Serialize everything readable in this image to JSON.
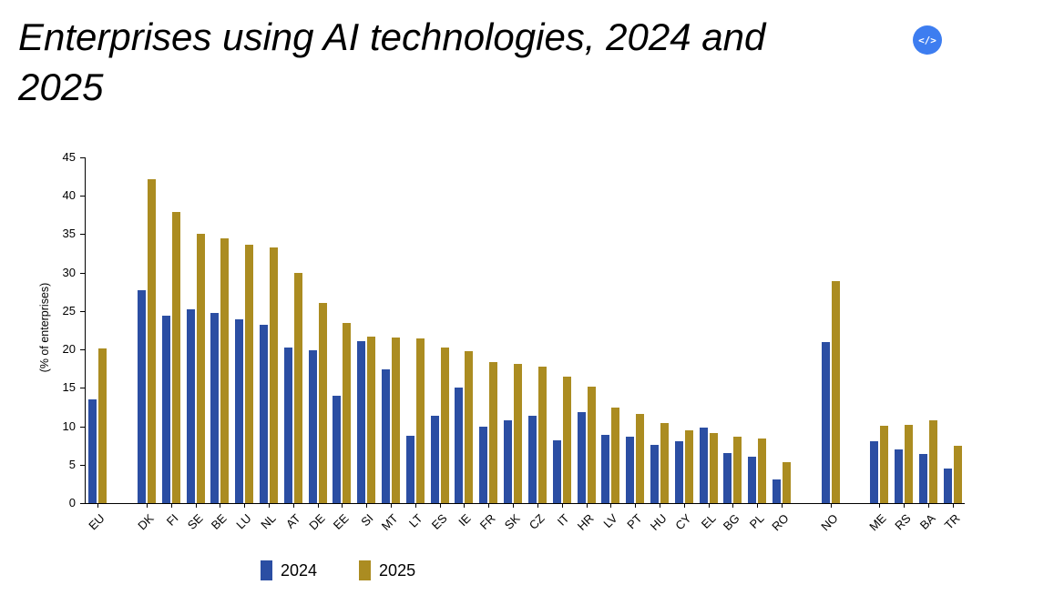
{
  "page": {
    "title": "Enterprises using AI technologies, 2024 and 2025",
    "embed_icon": "</>",
    "embed_button_color": "#3D7DF0",
    "background": "#FFFFFF"
  },
  "chart_data": {
    "type": "bar",
    "title": "Enterprises using AI technologies, 2024 and 2025",
    "ylabel": "(% of enterprises)",
    "xlabel": "",
    "ylim": [
      0,
      45
    ],
    "ytick_step": 5,
    "grid": false,
    "legend_position": "bottom",
    "categories": [
      "EU",
      "DK",
      "FI",
      "SE",
      "BE",
      "LU",
      "NL",
      "AT",
      "DE",
      "EE",
      "SI",
      "MT",
      "LT",
      "ES",
      "IE",
      "FR",
      "SK",
      "CZ",
      "IT",
      "HR",
      "LV",
      "PT",
      "HU",
      "CY",
      "EL",
      "BG",
      "PL",
      "RO",
      "NO",
      "ME",
      "RS",
      "BA",
      "TR"
    ],
    "gaps_after": [
      "EU",
      "RO",
      "NO"
    ],
    "series": [
      {
        "name": "2024",
        "color": "#2B4EA3",
        "values": [
          13.5,
          27.7,
          24.4,
          25.2,
          24.8,
          23.9,
          23.2,
          20.3,
          19.9,
          14.0,
          21.1,
          17.4,
          8.8,
          11.4,
          15.0,
          10.0,
          10.8,
          11.4,
          8.2,
          11.8,
          8.9,
          8.7,
          7.6,
          8.0,
          9.8,
          6.5,
          6.0,
          3.1,
          21.0,
          8.0,
          7.0,
          6.4,
          4.5
        ]
      },
      {
        "name": "2025",
        "color": "#AB8C21",
        "values": [
          20.1,
          42.2,
          37.9,
          35.1,
          34.5,
          33.6,
          33.3,
          30.0,
          26.1,
          23.5,
          21.7,
          21.6,
          21.4,
          20.3,
          19.8,
          18.3,
          18.1,
          17.8,
          16.5,
          15.2,
          12.4,
          11.6,
          10.4,
          9.5,
          9.1,
          8.6,
          8.4,
          5.3,
          28.9,
          10.1,
          10.2,
          10.8,
          7.5
        ]
      }
    ]
  }
}
